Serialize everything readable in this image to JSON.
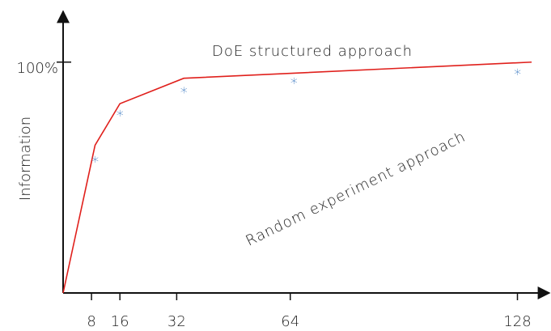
{
  "chart_data": {
    "type": "line",
    "y_label": "Information",
    "x": [
      0,
      9,
      16,
      34,
      132
    ],
    "series": [
      {
        "name": "DoE structured approach",
        "color": "#e0201c",
        "values": [
          0,
          64,
          82,
          93,
          100
        ]
      },
      {
        "name": "Random experiment approach",
        "color": "#2f73b8",
        "values": [
          0,
          null,
          null,
          null,
          100
        ]
      }
    ],
    "markers": {
      "color": "#3a78c0",
      "x": [
        9,
        16,
        34,
        65,
        128
      ],
      "values": [
        59,
        79,
        89,
        93,
        97
      ]
    },
    "xlim": [
      0,
      137
    ],
    "ylim": [
      0,
      122
    ],
    "xticks": [
      8,
      16,
      32,
      64,
      128
    ],
    "yticks": [
      {
        "value": 100,
        "label": "100%"
      }
    ]
  }
}
